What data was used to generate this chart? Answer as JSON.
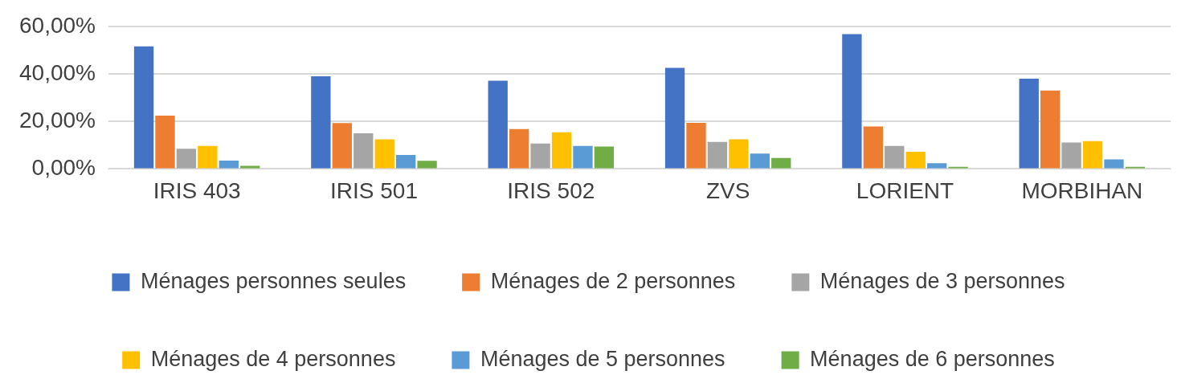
{
  "chart_data": {
    "type": "bar",
    "categories": [
      "IRIS 403",
      "IRIS 501",
      "IRIS 502",
      "ZVS",
      "LORIENT",
      "MORBIHAN"
    ],
    "series": [
      {
        "name": "Ménages personnes seules",
        "color": "#4472c4",
        "values": [
          51.6,
          39.0,
          37.1,
          42.5,
          56.7,
          38.0
        ]
      },
      {
        "name": "Ménages de 2 personnes",
        "color": "#ed7d31",
        "values": [
          22.4,
          19.3,
          16.8,
          19.4,
          17.9,
          33.0
        ]
      },
      {
        "name": "Ménages de 3 personnes",
        "color": "#a5a5a5",
        "values": [
          8.5,
          15.0,
          10.7,
          11.4,
          9.7,
          11.1
        ]
      },
      {
        "name": "Ménages de 4 personnes",
        "color": "#ffc000",
        "values": [
          9.7,
          12.5,
          15.4,
          12.5,
          7.2,
          11.7
        ]
      },
      {
        "name": "Ménages de 5 personnes",
        "color": "#5b9bd5",
        "values": [
          3.5,
          5.9,
          9.7,
          6.5,
          2.4,
          4.0
        ]
      },
      {
        "name": "Ménages de 6 personnes",
        "color": "#70ad47",
        "values": [
          1.3,
          3.4,
          9.4,
          4.6,
          0.9,
          0.9
        ]
      }
    ],
    "ylim": [
      0,
      60
    ],
    "yticks": [
      {
        "value": 0,
        "label": "0,00%"
      },
      {
        "value": 20,
        "label": "20,00%"
      },
      {
        "value": 40,
        "label": "40,00%"
      },
      {
        "value": 60,
        "label": "60,00%"
      }
    ],
    "grid": "y",
    "legend": "bottom"
  }
}
